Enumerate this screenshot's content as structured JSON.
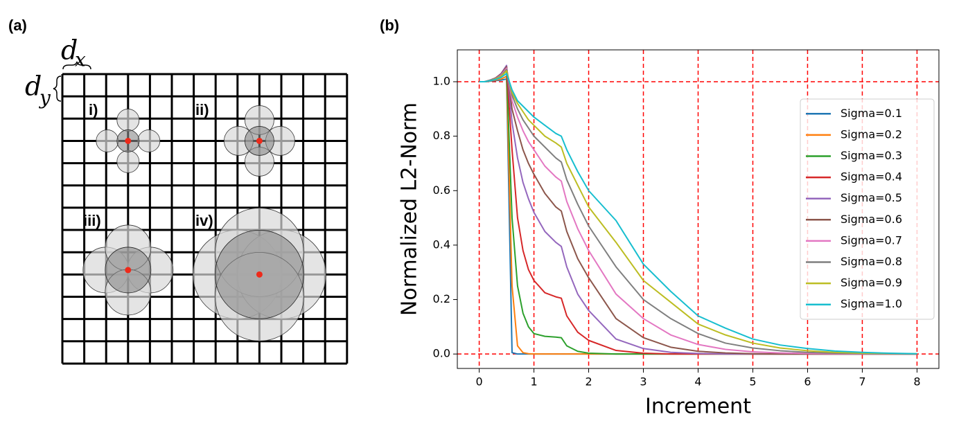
{
  "panel_a": {
    "label": "(a)",
    "dx": {
      "symbol": "d",
      "subscript": "x"
    },
    "dy": {
      "symbol": "d",
      "subscript": "y"
    },
    "cases": [
      "i)",
      "ii)",
      "iii)",
      "iv)"
    ]
  },
  "chart_data": {
    "type": "line",
    "label": "(b)",
    "xlabel": "Increment",
    "ylabel": "Normalized L2-Norm",
    "x": [
      0,
      0.1,
      0.2,
      0.3,
      0.4,
      0.5,
      0.6,
      0.7,
      0.8,
      0.9,
      1.0,
      1.2,
      1.4,
      1.5,
      1.6,
      1.8,
      2.0,
      2.5,
      3,
      3.5,
      4,
      4.5,
      5,
      5.5,
      6,
      6.5,
      7,
      7.5,
      8
    ],
    "series": [
      {
        "name": "Sigma=0.1",
        "color": "#1f77b4",
        "values": [
          1,
          1,
          1.002,
          1.004,
          1.006,
          1.01,
          0.005,
          0,
          0,
          0,
          0,
          0,
          0,
          0,
          0,
          0,
          0,
          0,
          0,
          0,
          0,
          0,
          0,
          0,
          0,
          0,
          0,
          0,
          0
        ]
      },
      {
        "name": "Sigma=0.2",
        "color": "#ff7f0e",
        "values": [
          1,
          1,
          1.003,
          1.006,
          1.01,
          1.02,
          0.25,
          0.03,
          0.005,
          0.001,
          0,
          0,
          0,
          0,
          0,
          0,
          0,
          0,
          0,
          0,
          0,
          0,
          0,
          0,
          0,
          0,
          0,
          0,
          0
        ]
      },
      {
        "name": "Sigma=0.3",
        "color": "#2ca02c",
        "values": [
          1,
          1,
          1.005,
          1.01,
          1.02,
          1.04,
          0.5,
          0.25,
          0.15,
          0.1,
          0.075,
          0.065,
          0.062,
          0.06,
          0.03,
          0.01,
          0.003,
          0,
          0,
          0,
          0,
          0,
          0,
          0,
          0,
          0,
          0,
          0,
          0
        ]
      },
      {
        "name": "Sigma=0.4",
        "color": "#d62728",
        "values": [
          1,
          1,
          1.005,
          1.012,
          1.025,
          1.05,
          0.75,
          0.5,
          0.38,
          0.31,
          0.27,
          0.225,
          0.21,
          0.205,
          0.14,
          0.08,
          0.05,
          0.013,
          0.003,
          0,
          0,
          0,
          0,
          0,
          0,
          0,
          0,
          0,
          0
        ]
      },
      {
        "name": "Sigma=0.5",
        "color": "#9467bd",
        "values": [
          1,
          1,
          1.006,
          1.014,
          1.03,
          1.06,
          0.85,
          0.72,
          0.63,
          0.57,
          0.52,
          0.45,
          0.41,
          0.395,
          0.32,
          0.22,
          0.16,
          0.055,
          0.02,
          0.006,
          0.002,
          0,
          0,
          0,
          0,
          0,
          0,
          0,
          0
        ]
      },
      {
        "name": "Sigma=0.6",
        "color": "#8c564b",
        "values": [
          1,
          1,
          1.006,
          1.014,
          1.028,
          1.055,
          0.9,
          0.82,
          0.75,
          0.7,
          0.66,
          0.59,
          0.54,
          0.525,
          0.45,
          0.35,
          0.28,
          0.13,
          0.06,
          0.025,
          0.01,
          0.004,
          0.001,
          0,
          0,
          0,
          0,
          0,
          0
        ]
      },
      {
        "name": "Sigma=0.7",
        "color": "#e377c2",
        "values": [
          1,
          1,
          1.005,
          1.012,
          1.025,
          1.05,
          0.93,
          0.87,
          0.82,
          0.78,
          0.75,
          0.69,
          0.65,
          0.635,
          0.56,
          0.46,
          0.38,
          0.22,
          0.13,
          0.07,
          0.035,
          0.017,
          0.008,
          0.004,
          0.002,
          0.001,
          0,
          0,
          0
        ]
      },
      {
        "name": "Sigma=0.8",
        "color": "#7f7f7f",
        "values": [
          1,
          1,
          1.005,
          1.011,
          1.022,
          1.045,
          0.95,
          0.9,
          0.86,
          0.83,
          0.8,
          0.76,
          0.72,
          0.705,
          0.64,
          0.55,
          0.47,
          0.32,
          0.2,
          0.13,
          0.075,
          0.04,
          0.022,
          0.012,
          0.006,
          0.003,
          0.0015,
          0.001,
          0
        ]
      },
      {
        "name": "Sigma=0.9",
        "color": "#bcbd22",
        "values": [
          1,
          1,
          1.004,
          1.01,
          1.02,
          1.04,
          0.96,
          0.92,
          0.89,
          0.86,
          0.84,
          0.8,
          0.775,
          0.76,
          0.7,
          0.62,
          0.54,
          0.41,
          0.27,
          0.19,
          0.11,
          0.07,
          0.04,
          0.022,
          0.012,
          0.006,
          0.003,
          0.002,
          0.001
        ]
      },
      {
        "name": "Sigma=1.0",
        "color": "#17becf",
        "values": [
          1,
          1,
          1.004,
          1.008,
          1.016,
          1.03,
          0.97,
          0.93,
          0.91,
          0.89,
          0.87,
          0.84,
          0.81,
          0.8,
          0.75,
          0.67,
          0.6,
          0.49,
          0.33,
          0.23,
          0.14,
          0.095,
          0.055,
          0.033,
          0.02,
          0.011,
          0.006,
          0.003,
          0.001
        ]
      }
    ],
    "xlim": [
      -0.4,
      8.4
    ],
    "ylim": [
      -0.053,
      1.117
    ],
    "xticks": [
      0,
      1,
      2,
      3,
      4,
      5,
      6,
      7,
      8
    ],
    "yticks": [
      {
        "value": 0,
        "label": "0.0"
      },
      0.2,
      0.4,
      0.6,
      0.8,
      {
        "value": 1,
        "label": "1.0"
      }
    ],
    "grid": "x",
    "grid_color": "#ff0000",
    "hlines": [
      0,
      1
    ],
    "legend": "center right"
  }
}
